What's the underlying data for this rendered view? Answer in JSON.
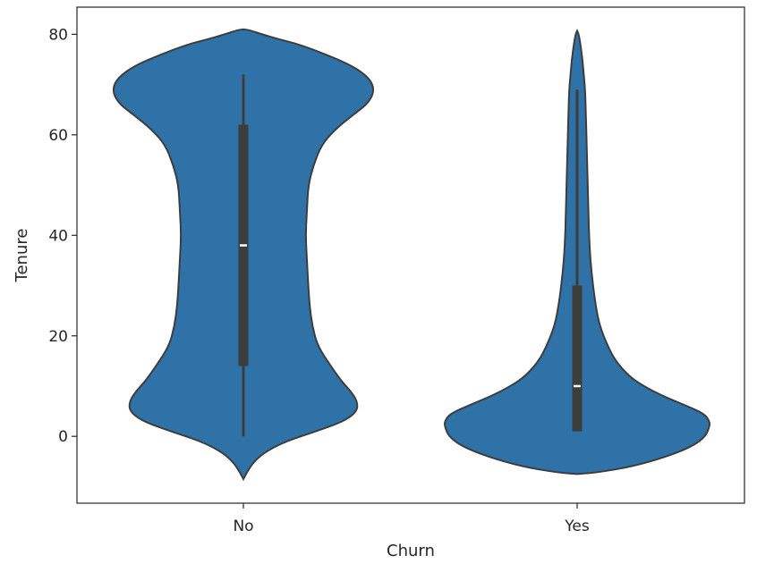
{
  "chart_data": {
    "type": "violin",
    "xlabel": "Churn",
    "ylabel": "Tenure",
    "categories": [
      "No",
      "Yes"
    ],
    "ylim": [
      -13.3,
      85.4
    ],
    "yticks": [
      0,
      20,
      40,
      60,
      80
    ],
    "grid": false,
    "colors": {
      "violin_fill": "#2f72a8",
      "violin_edge": "#3d3d3d",
      "box": "#3d3d3d",
      "median": "#ffffff"
    },
    "violins": [
      {
        "category": "No",
        "box": {
          "whisker_low": 0,
          "q1": 14,
          "median": 38,
          "q3": 62,
          "whisker_high": 72
        },
        "density_profile": [
          [
            -8.5,
            0.0
          ],
          [
            -7,
            0.03
          ],
          [
            -5,
            0.08
          ],
          [
            -3,
            0.17
          ],
          [
            -1,
            0.32
          ],
          [
            1,
            0.55
          ],
          [
            3,
            0.76
          ],
          [
            5,
            0.86
          ],
          [
            7,
            0.86
          ],
          [
            9,
            0.81
          ],
          [
            11,
            0.74
          ],
          [
            14,
            0.66
          ],
          [
            18,
            0.56
          ],
          [
            22,
            0.52
          ],
          [
            26,
            0.5
          ],
          [
            30,
            0.49
          ],
          [
            35,
            0.48
          ],
          [
            40,
            0.47
          ],
          [
            45,
            0.48
          ],
          [
            50,
            0.49
          ],
          [
            54,
            0.53
          ],
          [
            58,
            0.59
          ],
          [
            61,
            0.69
          ],
          [
            64,
            0.83
          ],
          [
            66,
            0.93
          ],
          [
            68,
            0.98
          ],
          [
            70,
            0.98
          ],
          [
            72,
            0.92
          ],
          [
            74,
            0.8
          ],
          [
            76,
            0.62
          ],
          [
            78,
            0.42
          ],
          [
            79,
            0.27
          ],
          [
            80,
            0.14
          ],
          [
            80.8,
            0.05
          ],
          [
            81,
            0.0
          ]
        ]
      },
      {
        "category": "Yes",
        "box": {
          "whisker_low": 1,
          "q1": 1,
          "median": 10,
          "q3": 30,
          "whisker_high": 69
        },
        "density_profile": [
          [
            -7.5,
            0.0
          ],
          [
            -7.2,
            0.15
          ],
          [
            -6,
            0.42
          ],
          [
            -4,
            0.68
          ],
          [
            -2,
            0.87
          ],
          [
            0,
            0.97
          ],
          [
            2,
            1.0
          ],
          [
            3,
            1.0
          ],
          [
            4.5,
            0.96
          ],
          [
            6,
            0.83
          ],
          [
            8,
            0.65
          ],
          [
            10,
            0.5
          ],
          [
            12,
            0.39
          ],
          [
            15,
            0.29
          ],
          [
            18,
            0.23
          ],
          [
            22,
            0.17
          ],
          [
            26,
            0.14
          ],
          [
            30,
            0.12
          ],
          [
            35,
            0.1
          ],
          [
            40,
            0.09
          ],
          [
            45,
            0.085
          ],
          [
            50,
            0.08
          ],
          [
            55,
            0.075
          ],
          [
            60,
            0.07
          ],
          [
            65,
            0.065
          ],
          [
            69,
            0.06
          ],
          [
            72,
            0.05
          ],
          [
            75,
            0.04
          ],
          [
            78,
            0.025
          ],
          [
            80,
            0.012
          ],
          [
            80.7,
            0.0
          ]
        ]
      }
    ]
  }
}
